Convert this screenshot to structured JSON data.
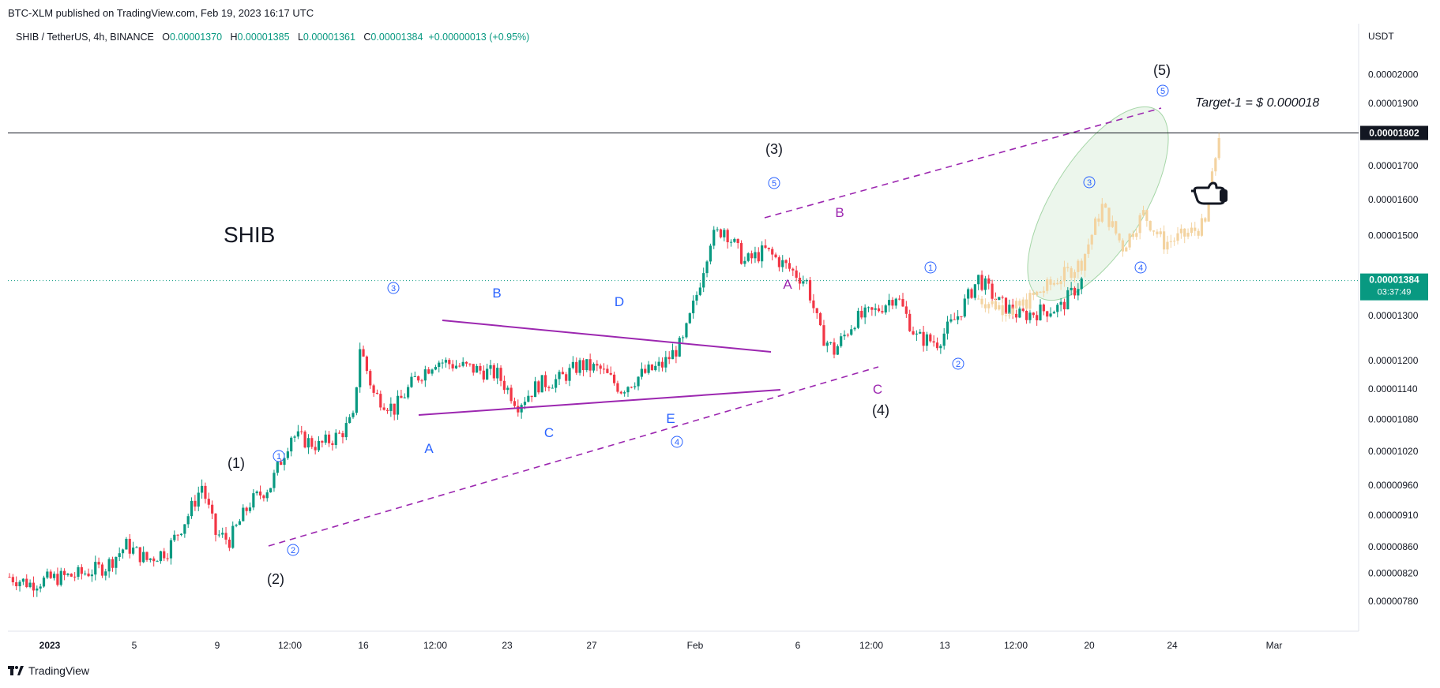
{
  "header": {
    "published_line": "BTC-XLM published on TradingView.com, Feb 19, 2023 16:17 UTC"
  },
  "symbol_bar": {
    "symbol": "SHIB / TetherUS, 4h, BINANCE",
    "open_label": "O",
    "open": "0.00001370",
    "high_label": "H",
    "high": "0.00001385",
    "low_label": "L",
    "low": "0.00001361",
    "close_label": "C",
    "close": "0.00001384",
    "change": "+0.00000013 (+0.95%)"
  },
  "footer": {
    "brand": "TradingView"
  },
  "colors": {
    "up": "#089981",
    "down": "#f23645",
    "projection": "#f3d3a0",
    "triangle": "#9c27b0",
    "wave_blue": "#2962ff",
    "ellipse": "#c8e6c9"
  },
  "chart_data": {
    "type": "candlestick",
    "title": "SHIB",
    "currency_label": "USDT",
    "y_scale": "log",
    "ylim": [
      7.5e-06,
      2.1e-05
    ],
    "y_ticks": [
      "0.00002000",
      "0.00001900",
      "0.00001700",
      "0.00001600",
      "0.00001500",
      "0.00001300",
      "0.00001200",
      "0.00001140",
      "0.00001080",
      "0.00001020",
      "0.00000960",
      "0.00000910",
      "0.00000860",
      "0.00000820",
      "0.00000780"
    ],
    "x_ticks": [
      "2023",
      "5",
      "9",
      "12:00",
      "16",
      "12:00",
      "23",
      "27",
      "Feb",
      "6",
      "12:00",
      "13",
      "12:00",
      "20",
      "24",
      "Mar"
    ],
    "target_line": {
      "price": 1.802e-05,
      "label": "0.00001802",
      "annotation": "Target-1 = $ 0.000018"
    },
    "last_price": {
      "price": 1.384e-05,
      "label": "0.00001384",
      "countdown": "03:37:49"
    },
    "wave_labels": [
      "(1)",
      "(2)",
      "(3)",
      "(4)",
      "(5)"
    ],
    "sub_wave_labels": [
      "1",
      "2",
      "3",
      "4",
      "5"
    ],
    "triangle_labels": [
      "A",
      "B",
      "C",
      "D",
      "E"
    ],
    "correction_labels": [
      "A",
      "B",
      "C"
    ],
    "price_path": [
      [
        0,
        8.15e-06
      ],
      [
        6,
        8.05e-06
      ],
      [
        12,
        8.12e-06
      ],
      [
        20,
        8.18e-06
      ],
      [
        28,
        8.3e-06
      ],
      [
        34,
        8.62e-06
      ],
      [
        40,
        8.4e-06
      ],
      [
        46,
        8.55e-06
      ],
      [
        52,
        9.1e-06
      ],
      [
        56,
        9.6e-06
      ],
      [
        60,
        8.8e-06
      ],
      [
        64,
        8.7e-06
      ],
      [
        70,
        9.3e-06
      ],
      [
        76,
        9.6e-06
      ],
      [
        82,
        1.05e-05
      ],
      [
        90,
        1.03e-05
      ],
      [
        96,
        1.05e-05
      ],
      [
        100,
        1.08e-05
      ],
      [
        102,
        1.23e-05
      ],
      [
        106,
        1.13e-05
      ],
      [
        112,
        1.1e-05
      ],
      [
        118,
        1.16e-05
      ],
      [
        124,
        1.2e-05
      ],
      [
        130,
        1.19e-05
      ],
      [
        136,
        1.18e-05
      ],
      [
        142,
        1.17e-05
      ],
      [
        148,
        1.11e-05
      ],
      [
        154,
        1.15e-05
      ],
      [
        160,
        1.16e-05
      ],
      [
        166,
        1.19e-05
      ],
      [
        172,
        1.18e-05
      ],
      [
        178,
        1.14e-05
      ],
      [
        184,
        1.17e-05
      ],
      [
        190,
        1.19e-05
      ],
      [
        196,
        1.24e-05
      ],
      [
        200,
        1.35e-05
      ],
      [
        204,
        1.49e-05
      ],
      [
        208,
        1.52e-05
      ],
      [
        214,
        1.43e-05
      ],
      [
        220,
        1.46e-05
      ],
      [
        226,
        1.42e-05
      ],
      [
        232,
        1.38e-05
      ],
      [
        236,
        1.26e-05
      ],
      [
        240,
        1.22e-05
      ],
      [
        246,
        1.29e-05
      ],
      [
        252,
        1.31e-05
      ],
      [
        258,
        1.35e-05
      ],
      [
        264,
        1.25e-05
      ],
      [
        270,
        1.24e-05
      ],
      [
        276,
        1.3e-05
      ],
      [
        282,
        1.39e-05
      ],
      [
        288,
        1.33e-05
      ],
      [
        294,
        1.3e-05
      ],
      [
        300,
        1.31e-05
      ],
      [
        306,
        1.32e-05
      ],
      [
        312,
        1.384e-05
      ]
    ],
    "projection_path": [
      [
        282,
        1.34e-05
      ],
      [
        292,
        1.31e-05
      ],
      [
        304,
        1.38e-05
      ],
      [
        312,
        1.43e-05
      ],
      [
        318,
        1.58e-05
      ],
      [
        324,
        1.47e-05
      ],
      [
        330,
        1.56e-05
      ],
      [
        336,
        1.48e-05
      ],
      [
        342,
        1.5e-05
      ],
      [
        348,
        1.53e-05
      ],
      [
        352,
        1.8e-05
      ]
    ]
  }
}
